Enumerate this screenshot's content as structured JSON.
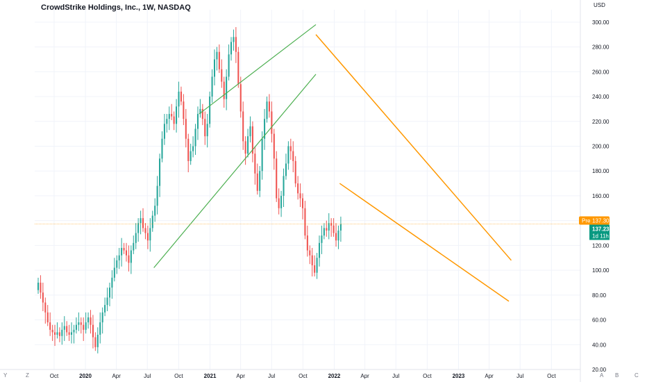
{
  "header": {
    "title": "CrowdStrike Holdings, Inc., 1W, NASDAQ"
  },
  "corner_controls": [
    "Y",
    "Z"
  ],
  "right_letters": [
    "A",
    "B",
    "C"
  ],
  "colors": {
    "up": "#26a69a",
    "down": "#ef5350",
    "channel": "#4caf50",
    "wedge": "#ff9800",
    "grid": "#f0f3fa",
    "pre": "#ff9800",
    "last": "#089981"
  },
  "chart_data": {
    "type": "candlestick",
    "title": "CrowdStrike Holdings, Inc., 1W, NASDAQ",
    "currency": "USD",
    "ylim": [
      20,
      310
    ],
    "y_ticks": [
      "300.00",
      "280.00",
      "260.00",
      "240.00",
      "220.00",
      "200.00",
      "180.00",
      "160.00",
      "140.00",
      "120.00",
      "100.00",
      "80.00",
      "60.00",
      "40.00",
      "20.00"
    ],
    "x_ticks": [
      "Oct",
      "2020",
      "Apr",
      "Jul",
      "Oct",
      "2021",
      "Apr",
      "Jul",
      "Oct",
      "2022",
      "Apr",
      "Jul",
      "Oct",
      "2023",
      "Apr",
      "Jul",
      "Oct"
    ],
    "x_tick_dates": [
      "2019-10-01",
      "2020-01-01",
      "2020-04-01",
      "2020-07-01",
      "2020-10-01",
      "2021-01-01",
      "2021-04-01",
      "2021-07-01",
      "2021-10-01",
      "2022-01-01",
      "2022-04-01",
      "2022-07-01",
      "2022-10-01",
      "2023-01-01",
      "2023-04-01",
      "2023-07-01",
      "2023-10-01"
    ],
    "pre_label": "Pre",
    "pre_price": "137.30",
    "last_price": "137.23",
    "countdown": "1d 11h",
    "closes": [
      90,
      82,
      74,
      66,
      58,
      52,
      50,
      48,
      50,
      47,
      52,
      55,
      50,
      48,
      50,
      52,
      56,
      58,
      56,
      52,
      58,
      62,
      56,
      46,
      38,
      48,
      58,
      66,
      72,
      78,
      86,
      94,
      102,
      108,
      112,
      118,
      116,
      112,
      106,
      116,
      122,
      130,
      138,
      142,
      134,
      130,
      124,
      134,
      144,
      152,
      168,
      190,
      206,
      218,
      222,
      226,
      224,
      218,
      232,
      244,
      236,
      222,
      206,
      188,
      196,
      200,
      214,
      226,
      230,
      222,
      208,
      218,
      240,
      256,
      270,
      276,
      262,
      252,
      238,
      256,
      274,
      284,
      288,
      276,
      250,
      228,
      204,
      194,
      208,
      216,
      194,
      178,
      164,
      180,
      206,
      222,
      236,
      228,
      210,
      190,
      158,
      150,
      160,
      176,
      186,
      200,
      196,
      188,
      170,
      162,
      158,
      150,
      128,
      116,
      112,
      104,
      98,
      110,
      122,
      128,
      134,
      132,
      138,
      136,
      130,
      124,
      132,
      137.23
    ],
    "channel_lines": [
      {
        "from": [
          "2020-07-20",
          102
        ],
        "to": [
          "2021-11-08",
          258
        ]
      },
      {
        "from": [
          "2020-11-30",
          226
        ],
        "to": [
          "2021-11-08",
          298
        ]
      }
    ],
    "wedge_lines": [
      {
        "from": [
          "2021-11-08",
          290
        ],
        "to": [
          "2023-06-05",
          108
        ]
      },
      {
        "from": [
          "2022-01-17",
          170
        ],
        "to": [
          "2023-05-29",
          75
        ]
      }
    ]
  }
}
